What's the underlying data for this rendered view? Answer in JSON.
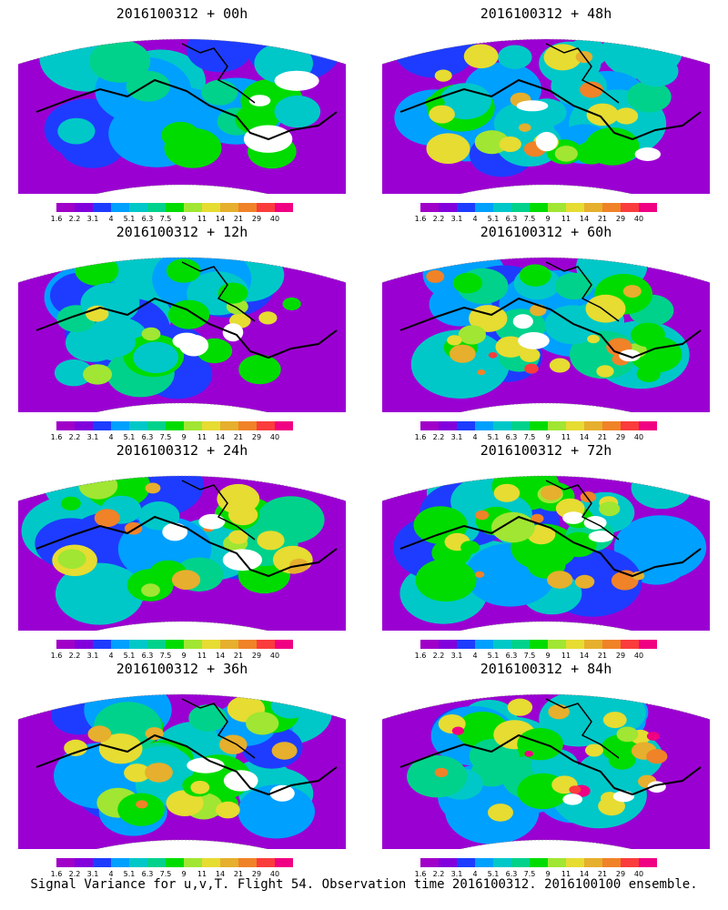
{
  "panels": [
    {
      "title": "2016100312 + 00h",
      "intensity": 0.2
    },
    {
      "title": "2016100312 + 48h",
      "intensity": 0.6
    },
    {
      "title": "2016100312 + 12h",
      "intensity": 0.35
    },
    {
      "title": "2016100312 + 60h",
      "intensity": 0.7
    },
    {
      "title": "2016100312 + 24h",
      "intensity": 0.45
    },
    {
      "title": "2016100312 + 72h",
      "intensity": 0.8
    },
    {
      "title": "2016100312 + 36h",
      "intensity": 0.5
    },
    {
      "title": "2016100312 + 84h",
      "intensity": 0.9
    }
  ],
  "colorbar": {
    "labels": [
      "1.6",
      "2.2",
      "3.1",
      "4",
      "5.1",
      "6.3",
      "7.5",
      "9",
      "11",
      "14",
      "21",
      "29",
      "40"
    ],
    "colors": [
      "#a000c8",
      "#8200dc",
      "#1e3cff",
      "#00a0ff",
      "#00c8c8",
      "#00d28c",
      "#00dc00",
      "#a0e632",
      "#e6dc32",
      "#e6af2d",
      "#f08228",
      "#fa3c3c",
      "#f00082"
    ]
  },
  "caption": "Signal Variance for u,v,T. Flight 54. Observation time 2016100312. 2016100100 ensemble."
}
